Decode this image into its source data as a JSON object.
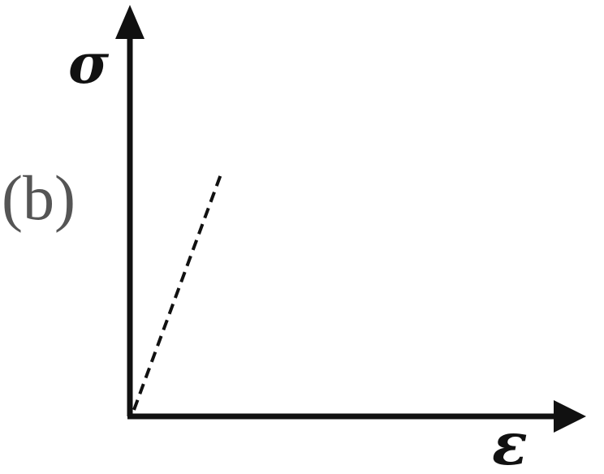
{
  "panel_label": "(b)",
  "y_axis_symbol": "σ",
  "x_axis_symbol": "ε",
  "colors": {
    "axis": "#111111",
    "line": "#111111",
    "label": "#555555"
  }
}
